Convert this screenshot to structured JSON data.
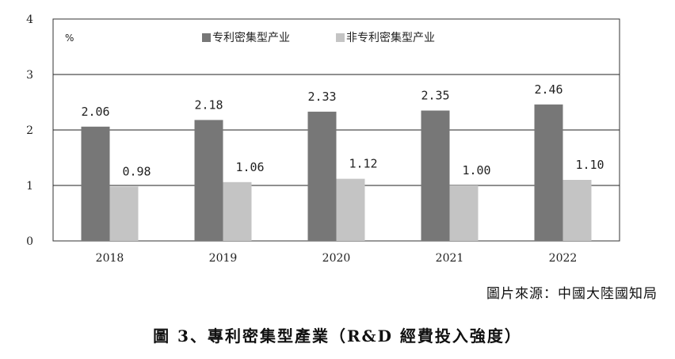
{
  "chart_data": {
    "type": "bar",
    "unit_label": "%",
    "categories": [
      "2018",
      "2019",
      "2020",
      "2021",
      "2022"
    ],
    "series": [
      {
        "name": "专利密集型产业",
        "values": [
          2.06,
          2.18,
          2.33,
          2.35,
          2.46
        ],
        "color": "#777777"
      },
      {
        "name": "非专利密集型产业",
        "values": [
          0.98,
          1.06,
          1.12,
          1.0,
          1.1
        ],
        "color": "#c4c4c4"
      }
    ],
    "value_labels": [
      [
        "2.06",
        "2.18",
        "2.33",
        "2.35",
        "2.46"
      ],
      [
        "0.98",
        "1.06",
        "1.12",
        "1.00",
        "1.10"
      ]
    ],
    "ylim": [
      0,
      4
    ],
    "yticks": [
      "0",
      "1",
      "2",
      "3",
      "4"
    ],
    "grid": true,
    "legend_position": "top-center"
  },
  "source": "圖片來源：中國大陸國知局",
  "caption": "圖 3、專利密集型產業（R&D 經費投入強度）"
}
